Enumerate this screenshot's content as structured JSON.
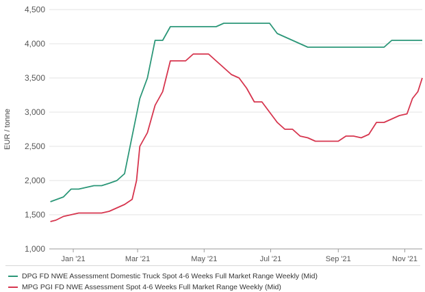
{
  "chart_data": {
    "type": "line",
    "ylabel": "EUR / tonne",
    "xlabel": "",
    "ylim": [
      1000,
      4500
    ],
    "yticks": [
      1000,
      1500,
      2000,
      2500,
      3000,
      3500,
      4000,
      4500
    ],
    "ytick_labels": [
      "1,000",
      "1,500",
      "2,000",
      "2,500",
      "3,000",
      "3,500",
      "4,000",
      "4,500"
    ],
    "xlim": [
      "2020-12-10",
      "2021-11-17"
    ],
    "xticks": [
      {
        "date": "2021-01-01",
        "label": "Jan '21"
      },
      {
        "date": "2021-03-01",
        "label": "Mar '21"
      },
      {
        "date": "2021-05-01",
        "label": "May '21"
      },
      {
        "date": "2021-07-01",
        "label": "Jul '21"
      },
      {
        "date": "2021-09-01",
        "label": "Sep '21"
      },
      {
        "date": "2021-11-01",
        "label": "Nov '21"
      }
    ],
    "grid": "horizontal",
    "legend_position": "bottom",
    "series": [
      {
        "name": "DPG FD NWE Assessment Domestic Truck Spot 4-6 Weeks Full Market Range Weekly (Mid)",
        "color": "#2a9677",
        "points": [
          [
            "2020-12-11",
            1690
          ],
          [
            "2020-12-23",
            1760
          ],
          [
            "2020-12-30",
            1875
          ],
          [
            "2021-01-06",
            1875
          ],
          [
            "2021-01-13",
            1900
          ],
          [
            "2021-01-20",
            1925
          ],
          [
            "2021-01-27",
            1925
          ],
          [
            "2021-02-03",
            1960
          ],
          [
            "2021-02-10",
            2000
          ],
          [
            "2021-02-17",
            2100
          ],
          [
            "2021-02-24",
            2650
          ],
          [
            "2021-03-03",
            3200
          ],
          [
            "2021-03-10",
            3500
          ],
          [
            "2021-03-17",
            4050
          ],
          [
            "2021-03-24",
            4050
          ],
          [
            "2021-03-31",
            4250
          ],
          [
            "2021-04-07",
            4250
          ],
          [
            "2021-04-14",
            4250
          ],
          [
            "2021-04-21",
            4250
          ],
          [
            "2021-04-28",
            4250
          ],
          [
            "2021-05-05",
            4250
          ],
          [
            "2021-05-12",
            4250
          ],
          [
            "2021-05-19",
            4300
          ],
          [
            "2021-05-26",
            4300
          ],
          [
            "2021-06-02",
            4300
          ],
          [
            "2021-06-09",
            4300
          ],
          [
            "2021-06-16",
            4300
          ],
          [
            "2021-06-23",
            4300
          ],
          [
            "2021-06-30",
            4300
          ],
          [
            "2021-07-07",
            4150
          ],
          [
            "2021-07-14",
            4100
          ],
          [
            "2021-07-21",
            4050
          ],
          [
            "2021-07-28",
            4000
          ],
          [
            "2021-08-04",
            3950
          ],
          [
            "2021-08-11",
            3950
          ],
          [
            "2021-08-18",
            3950
          ],
          [
            "2021-08-25",
            3950
          ],
          [
            "2021-09-01",
            3950
          ],
          [
            "2021-09-08",
            3950
          ],
          [
            "2021-09-15",
            3950
          ],
          [
            "2021-09-22",
            3950
          ],
          [
            "2021-09-29",
            3950
          ],
          [
            "2021-10-06",
            3950
          ],
          [
            "2021-10-13",
            3950
          ],
          [
            "2021-10-20",
            4050
          ],
          [
            "2021-10-27",
            4050
          ],
          [
            "2021-11-03",
            4050
          ],
          [
            "2021-11-10",
            4050
          ],
          [
            "2021-11-17",
            4050
          ]
        ]
      },
      {
        "name": "MPG PGI FD NWE Assessment Spot 4-6 Weeks Full Market Range Weekly (Mid)",
        "color": "#d6344d",
        "points": [
          [
            "2020-12-11",
            1400
          ],
          [
            "2020-12-16",
            1420
          ],
          [
            "2020-12-23",
            1475
          ],
          [
            "2020-12-30",
            1500
          ],
          [
            "2021-01-06",
            1525
          ],
          [
            "2021-01-13",
            1525
          ],
          [
            "2021-01-20",
            1525
          ],
          [
            "2021-01-27",
            1525
          ],
          [
            "2021-02-03",
            1550
          ],
          [
            "2021-02-10",
            1600
          ],
          [
            "2021-02-17",
            1650
          ],
          [
            "2021-02-24",
            1725
          ],
          [
            "2021-02-28",
            2000
          ],
          [
            "2021-03-03",
            2500
          ],
          [
            "2021-03-10",
            2700
          ],
          [
            "2021-03-17",
            3100
          ],
          [
            "2021-03-24",
            3300
          ],
          [
            "2021-03-31",
            3750
          ],
          [
            "2021-04-07",
            3750
          ],
          [
            "2021-04-14",
            3750
          ],
          [
            "2021-04-21",
            3850
          ],
          [
            "2021-04-28",
            3850
          ],
          [
            "2021-05-05",
            3850
          ],
          [
            "2021-05-12",
            3750
          ],
          [
            "2021-05-19",
            3650
          ],
          [
            "2021-05-26",
            3550
          ],
          [
            "2021-06-02",
            3500
          ],
          [
            "2021-06-09",
            3350
          ],
          [
            "2021-06-16",
            3150
          ],
          [
            "2021-06-23",
            3150
          ],
          [
            "2021-06-30",
            3000
          ],
          [
            "2021-07-07",
            2850
          ],
          [
            "2021-07-14",
            2750
          ],
          [
            "2021-07-21",
            2750
          ],
          [
            "2021-07-28",
            2650
          ],
          [
            "2021-08-04",
            2625
          ],
          [
            "2021-08-11",
            2575
          ],
          [
            "2021-08-18",
            2575
          ],
          [
            "2021-08-25",
            2575
          ],
          [
            "2021-09-01",
            2575
          ],
          [
            "2021-09-08",
            2650
          ],
          [
            "2021-09-15",
            2650
          ],
          [
            "2021-09-22",
            2625
          ],
          [
            "2021-09-29",
            2675
          ],
          [
            "2021-10-06",
            2850
          ],
          [
            "2021-10-13",
            2850
          ],
          [
            "2021-10-20",
            2900
          ],
          [
            "2021-10-27",
            2950
          ],
          [
            "2021-11-03",
            2975
          ],
          [
            "2021-11-08",
            3200
          ],
          [
            "2021-11-13",
            3300
          ],
          [
            "2021-11-17",
            3500
          ]
        ]
      }
    ]
  }
}
